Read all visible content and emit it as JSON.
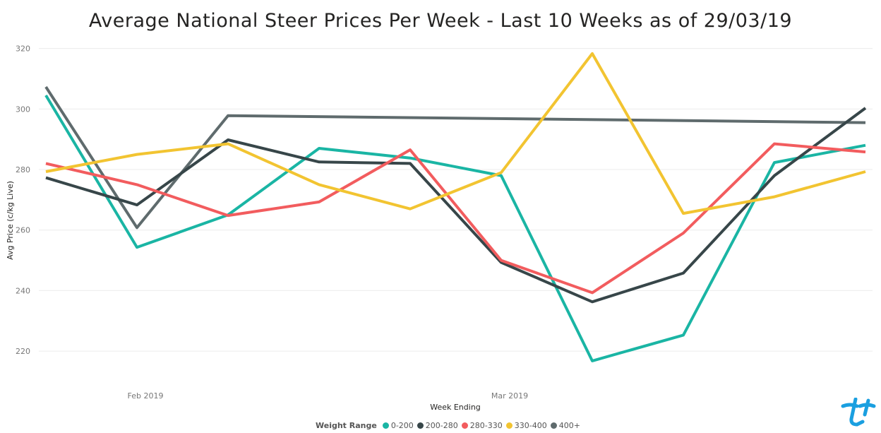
{
  "title": "Average National Steer Prices Per Week - Last 10 Weeks as of 29/03/19",
  "legend_title": "Weight Range",
  "chart_data": {
    "type": "line",
    "title": "Average National Steer Prices Per Week - Last 10 Weeks as of 29/03/19",
    "xlabel": "Week Ending",
    "ylabel": "Avg Price (c/kg Live)",
    "ylim": [
      210,
      322
    ],
    "yticks": [
      220,
      240,
      260,
      280,
      300,
      320
    ],
    "xtick_labels": [
      "Feb 2019",
      "Mar 2019"
    ],
    "grid": true,
    "legend_position": "bottom",
    "x": [
      "2019-01-25",
      "2019-02-01",
      "2019-02-08",
      "2019-02-15",
      "2019-02-22",
      "2019-03-01",
      "2019-03-08",
      "2019-03-15",
      "2019-03-22",
      "2019-03-29"
    ],
    "series": [
      {
        "name": "0-200",
        "color": "#1AB5A4",
        "values": [
          304.5,
          254.3,
          265.0,
          287.0,
          283.8,
          278.0,
          216.8,
          225.3,
          282.3,
          288.0
        ]
      },
      {
        "name": "200-280",
        "color": "#374649",
        "values": [
          277.3,
          268.3,
          289.8,
          282.5,
          282.0,
          249.3,
          236.3,
          245.8,
          278.0,
          300.3
        ]
      },
      {
        "name": "280-330",
        "color": "#F25C5E",
        "values": [
          282.0,
          275.0,
          264.8,
          269.3,
          286.5,
          250.0,
          239.3,
          259.0,
          288.5,
          285.8
        ]
      },
      {
        "name": "330-400",
        "color": "#F2C431",
        "values": [
          279.3,
          285.0,
          288.5,
          275.0,
          267.0,
          279.0,
          318.3,
          265.5,
          271.0,
          279.3
        ]
      },
      {
        "name": "400+",
        "color": "#5F6B6D",
        "values": [
          307.3,
          260.8,
          297.8,
          null,
          null,
          null,
          null,
          null,
          null,
          295.5
        ]
      }
    ]
  }
}
